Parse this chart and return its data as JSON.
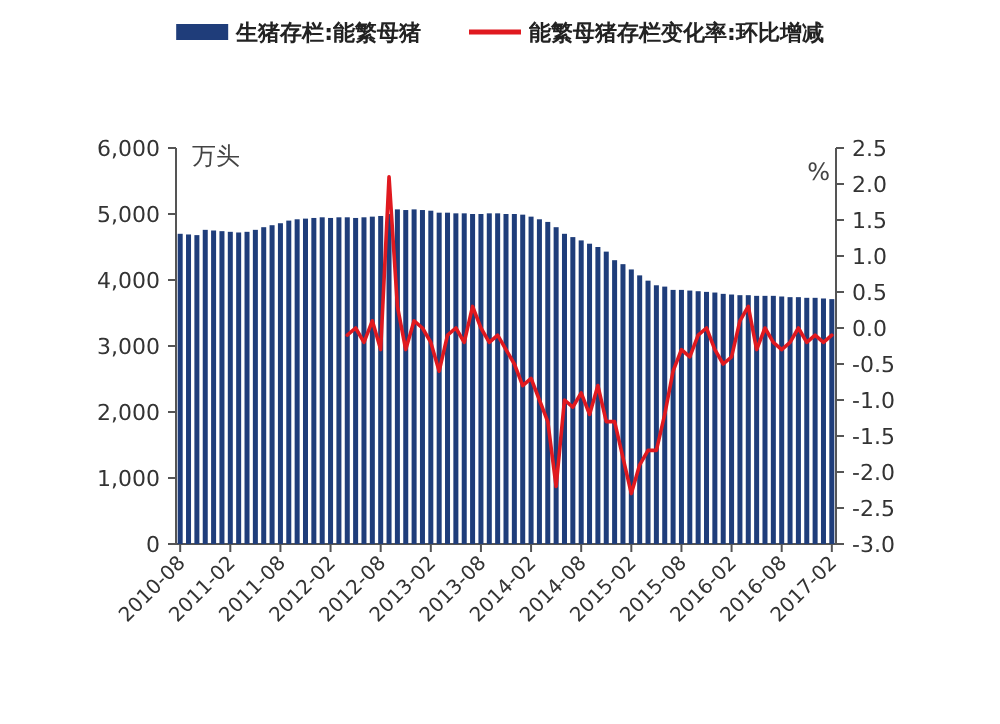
{
  "chart_data": {
    "type": "bar",
    "ylabel": "万头",
    "y2label": "%",
    "legend": "top",
    "categories": [
      "2010-08",
      null,
      null,
      null,
      null,
      null,
      "2011-02",
      null,
      null,
      null,
      null,
      null,
      "2011-08",
      null,
      null,
      null,
      null,
      null,
      "2012-02",
      null,
      null,
      null,
      null,
      null,
      "2012-08",
      null,
      null,
      null,
      null,
      null,
      "2013-02",
      null,
      null,
      null,
      null,
      null,
      "2013-08",
      null,
      null,
      null,
      null,
      null,
      "2014-02",
      null,
      null,
      null,
      null,
      null,
      "2014-08",
      null,
      null,
      null,
      null,
      null,
      "2015-02",
      null,
      null,
      null,
      null,
      null,
      "2015-08",
      null,
      null,
      null,
      null,
      null,
      "2016-02",
      null,
      null,
      null,
      null,
      null,
      "2016-08",
      null,
      null,
      null,
      null,
      null,
      "2017-02"
    ],
    "ylim": [
      0,
      6000
    ],
    "yticks": [
      0,
      {
        "value": 1000,
        "label": "1,000"
      },
      {
        "value": 2000,
        "label": "2,000"
      },
      {
        "value": 3000,
        "label": "3,000"
      },
      {
        "value": 4000,
        "label": "4,000"
      },
      {
        "value": 5000,
        "label": "5,000"
      },
      {
        "value": 6000,
        "label": "6,000"
      }
    ],
    "y2lim": [
      -3,
      2.5
    ],
    "y2ticks": [
      {
        "value": -3,
        "label": "-3.0"
      },
      {
        "value": -2.5,
        "label": "-2.5"
      },
      {
        "value": -2,
        "label": "-2.0"
      },
      {
        "value": -1.5,
        "label": "-1.5"
      },
      {
        "value": -1,
        "label": "-1.0"
      },
      {
        "value": -0.5,
        "label": "-0.5"
      },
      {
        "value": 0,
        "label": "0.0"
      },
      {
        "value": 0.5,
        "label": "0.5"
      },
      {
        "value": 1,
        "label": "1.0"
      },
      {
        "value": 1.5,
        "label": "1.5"
      },
      {
        "value": 2,
        "label": "2.0"
      },
      {
        "value": 2.5,
        "label": "2.5"
      }
    ],
    "series": [
      {
        "name": "生猪存栏:能繁母猪",
        "color": "#1f3d7a",
        "values": [
          4700,
          4690,
          4680,
          4760,
          4750,
          4740,
          4730,
          4720,
          4730,
          4760,
          4800,
          4830,
          4860,
          4900,
          4920,
          4930,
          4940,
          4950,
          4940,
          4950,
          4950,
          4940,
          4950,
          4960,
          4970,
          5000,
          5070,
          5060,
          5070,
          5060,
          5050,
          5020,
          5020,
          5010,
          5010,
          5000,
          5000,
          5010,
          5010,
          5000,
          5000,
          4990,
          4960,
          4920,
          4880,
          4800,
          4700,
          4650,
          4600,
          4550,
          4500,
          4430,
          4300,
          4240,
          4160,
          4070,
          3990,
          3920,
          3900,
          3850,
          3850,
          3840,
          3830,
          3820,
          3810,
          3790,
          3780,
          3770,
          3770,
          3760,
          3760,
          3760,
          3750,
          3740,
          3740,
          3730,
          3730,
          3720,
          3710
        ]
      },
      {
        "name": "能繁母猪存栏变化率:环比增减",
        "type": "line",
        "axis": "y2",
        "color": "#e0191f",
        "values": [
          null,
          null,
          null,
          null,
          null,
          null,
          null,
          null,
          null,
          null,
          null,
          null,
          null,
          null,
          null,
          null,
          null,
          null,
          null,
          null,
          -0.1,
          0.0,
          -0.2,
          0.1,
          -0.3,
          2.1,
          0.3,
          -0.3,
          0.1,
          0.0,
          -0.2,
          -0.6,
          -0.1,
          0.0,
          -0.2,
          0.3,
          0.0,
          -0.2,
          -0.1,
          -0.3,
          -0.5,
          -0.8,
          -0.7,
          -1.0,
          -1.3,
          -2.2,
          -1.0,
          -1.1,
          -0.9,
          -1.2,
          -0.8,
          -1.3,
          -1.3,
          -1.8,
          -2.3,
          -1.9,
          -1.7,
          -1.7,
          -1.2,
          -0.6,
          -0.3,
          -0.4,
          -0.1,
          0.0,
          -0.3,
          -0.5,
          -0.4,
          0.1,
          0.3,
          -0.3,
          0.0,
          -0.2,
          -0.3,
          -0.2,
          0.0,
          -0.2,
          -0.1,
          -0.2,
          -0.1
        ]
      }
    ]
  }
}
